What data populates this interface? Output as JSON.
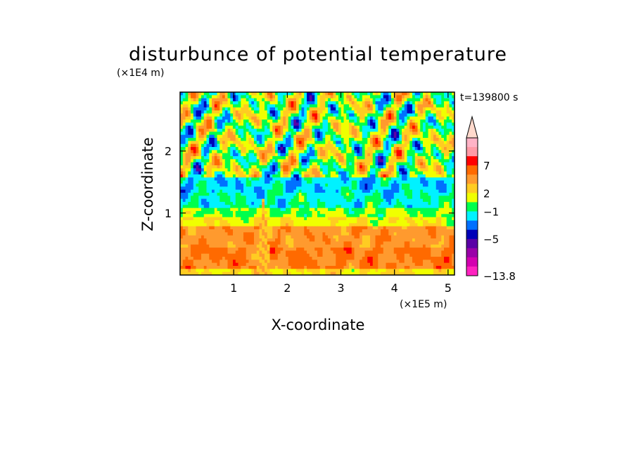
{
  "chart_data": {
    "type": "heatmap",
    "title": "disturbunce of potential temperature",
    "xlabel": "X-coordinate",
    "ylabel": "Z-coordinate",
    "x_unit": "(×1E5 m)",
    "y_unit": "(×1E4 m)",
    "time_label": "t=139800 s",
    "xlim": [
      0,
      5.12
    ],
    "ylim": [
      0,
      2.95
    ],
    "x_ticks": [
      1,
      2,
      3,
      4,
      5
    ],
    "y_ticks": [
      1,
      2
    ],
    "colorbar": {
      "labels": [
        "7",
        "2",
        "−1",
        "−5",
        "−13.8"
      ],
      "colors": [
        "#ffb3c6",
        "#ff9aa6",
        "#ff0000",
        "#ff6a00",
        "#ff9a2e",
        "#ffcc22",
        "#f0ff00",
        "#00ff4c",
        "#00f2ff",
        "#0070ff",
        "#0000b8",
        "#5a00a6",
        "#9a00a8",
        "#d400b0",
        "#ff22c0"
      ],
      "extend_top": true,
      "extend_top_color": "#ffd9cc"
    },
    "layers": [
      {
        "z_range": [
          0,
          0.8
        ],
        "category": "warm",
        "dominant_color": "#ff9a2e"
      },
      {
        "z_range": [
          0.8,
          1.1
        ],
        "category": "near zero",
        "dominant_color": "#f0ff00"
      },
      {
        "z_range": [
          1.1,
          1.55
        ],
        "category": "cool",
        "dominant_color": "#00f2ff"
      },
      {
        "z_range": [
          1.55,
          2.95
        ],
        "category": "alternating cells",
        "dominant_color": "#ff6a00"
      }
    ]
  }
}
